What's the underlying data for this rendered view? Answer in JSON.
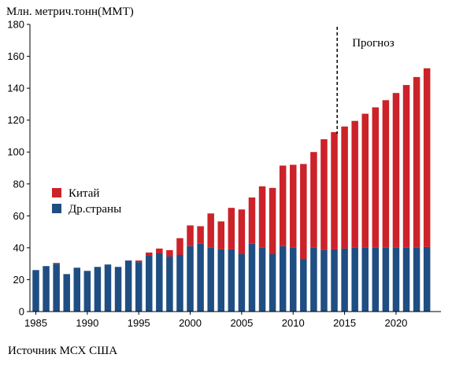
{
  "chart_data": {
    "type": "bar",
    "stacked": true,
    "ylabel": "Млн. метрич.тонн(ММТ)",
    "ylim": [
      0,
      180
    ],
    "yticks": [
      0,
      20,
      40,
      60,
      80,
      100,
      120,
      140,
      160,
      180
    ],
    "xticks": [
      1985,
      1990,
      1995,
      2000,
      2005,
      2010,
      2015,
      2020
    ],
    "x": [
      1985,
      1986,
      1987,
      1988,
      1989,
      1990,
      1991,
      1992,
      1993,
      1994,
      1995,
      1996,
      1997,
      1998,
      1999,
      2000,
      2001,
      2002,
      2003,
      2004,
      2005,
      2006,
      2007,
      2008,
      2009,
      2010,
      2011,
      2012,
      2013,
      2014,
      2015,
      2016,
      2017,
      2018,
      2019,
      2020,
      2021,
      2022,
      2023
    ],
    "series": [
      {
        "name": "Др.страны",
        "color": "#1f4e82",
        "values": [
          26,
          28.5,
          30,
          23.5,
          27.5,
          25.5,
          28,
          29.5,
          28,
          32,
          31,
          35,
          36.5,
          34.5,
          35.5,
          41,
          42.5,
          40,
          39,
          39,
          36,
          42.5,
          40,
          36,
          41,
          40,
          33,
          40,
          38.5,
          39,
          39.5,
          40,
          40,
          40,
          40,
          40,
          40,
          40,
          40.5
        ]
      },
      {
        "name": "Китай",
        "color": "#cc2229",
        "values": [
          0,
          0,
          0.5,
          0,
          0,
          0,
          0,
          0,
          0,
          0,
          1,
          2,
          3,
          4,
          10.5,
          13,
          11,
          21.5,
          17.5,
          26,
          28,
          29,
          38.5,
          41.5,
          50.5,
          52,
          59.5,
          60,
          69.5,
          73.5,
          76.5,
          79.5,
          84,
          88,
          92.5,
          97,
          102,
          107,
          112
        ]
      }
    ],
    "annotations": [
      {
        "text": "Прогноз",
        "x": 2014
      }
    ],
    "legend_position": "left-middle",
    "grid": false
  },
  "source": "Источник МСХ США"
}
